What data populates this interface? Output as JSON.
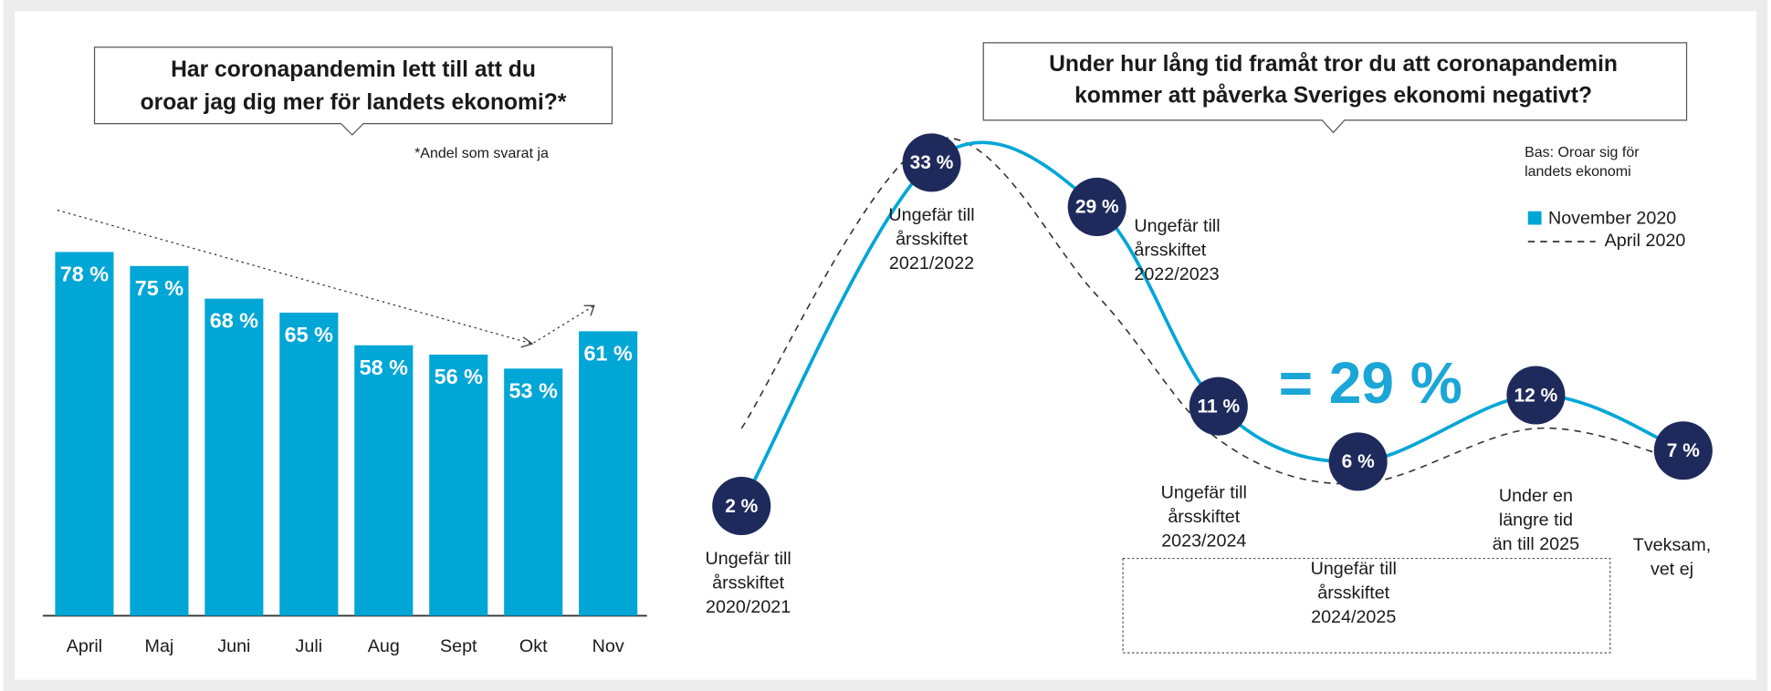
{
  "chart_data": [
    {
      "type": "bar",
      "title": [
        "Har coronapandemin lett till att du",
        "oroar jag dig mer för landets ekonomi?*"
      ],
      "note": "*Andel som svarat ja",
      "categories": [
        "April",
        "Maj",
        "Juni",
        "Juli",
        "Aug",
        "Sept",
        "Okt",
        "Nov"
      ],
      "values": [
        78,
        75,
        68,
        65,
        58,
        56,
        53,
        61
      ],
      "value_labels": [
        "78 %",
        "75 %",
        "68 %",
        "65 %",
        "58 %",
        "56 %",
        "53 %",
        "61 %"
      ],
      "color": "#00a6d6"
    },
    {
      "type": "line",
      "title": [
        "Under hur lång tid framåt tror du att coronapandemin",
        "kommer att påverka Sveriges ekonomi negativt?"
      ],
      "note": [
        "Bas: Oroar sig för",
        "landets ekonomi"
      ],
      "annotation": "= 29 %",
      "categories": [
        [
          "Ungefär till",
          "årsskiftet",
          "2020/2021"
        ],
        [
          "Ungefär till",
          "årsskiftet",
          "2021/2022"
        ],
        [
          "Ungefär till",
          "årsskiftet",
          "2022/2023"
        ],
        [
          "Ungefär till",
          "årsskiftet",
          "2023/2024"
        ],
        [
          "Ungefär till",
          "årsskiftet",
          "2024/2025"
        ],
        [
          "Under en",
          "längre tid",
          "än till 2025"
        ],
        [
          "Tveksam,",
          "vet ej"
        ]
      ],
      "series": [
        {
          "name": "November 2020",
          "color": "#00a6d6",
          "values": [
            2,
            33,
            29,
            11,
            6,
            12,
            7
          ],
          "value_labels": [
            "2 %",
            "33 %",
            "29 %",
            "11 %",
            "6 %",
            "12 %",
            "7 %"
          ]
        },
        {
          "name": "April 2020",
          "color": "#333333",
          "values": [
            9,
            35,
            21,
            8,
            4,
            9,
            6
          ]
        }
      ],
      "legend": "upper right"
    }
  ]
}
